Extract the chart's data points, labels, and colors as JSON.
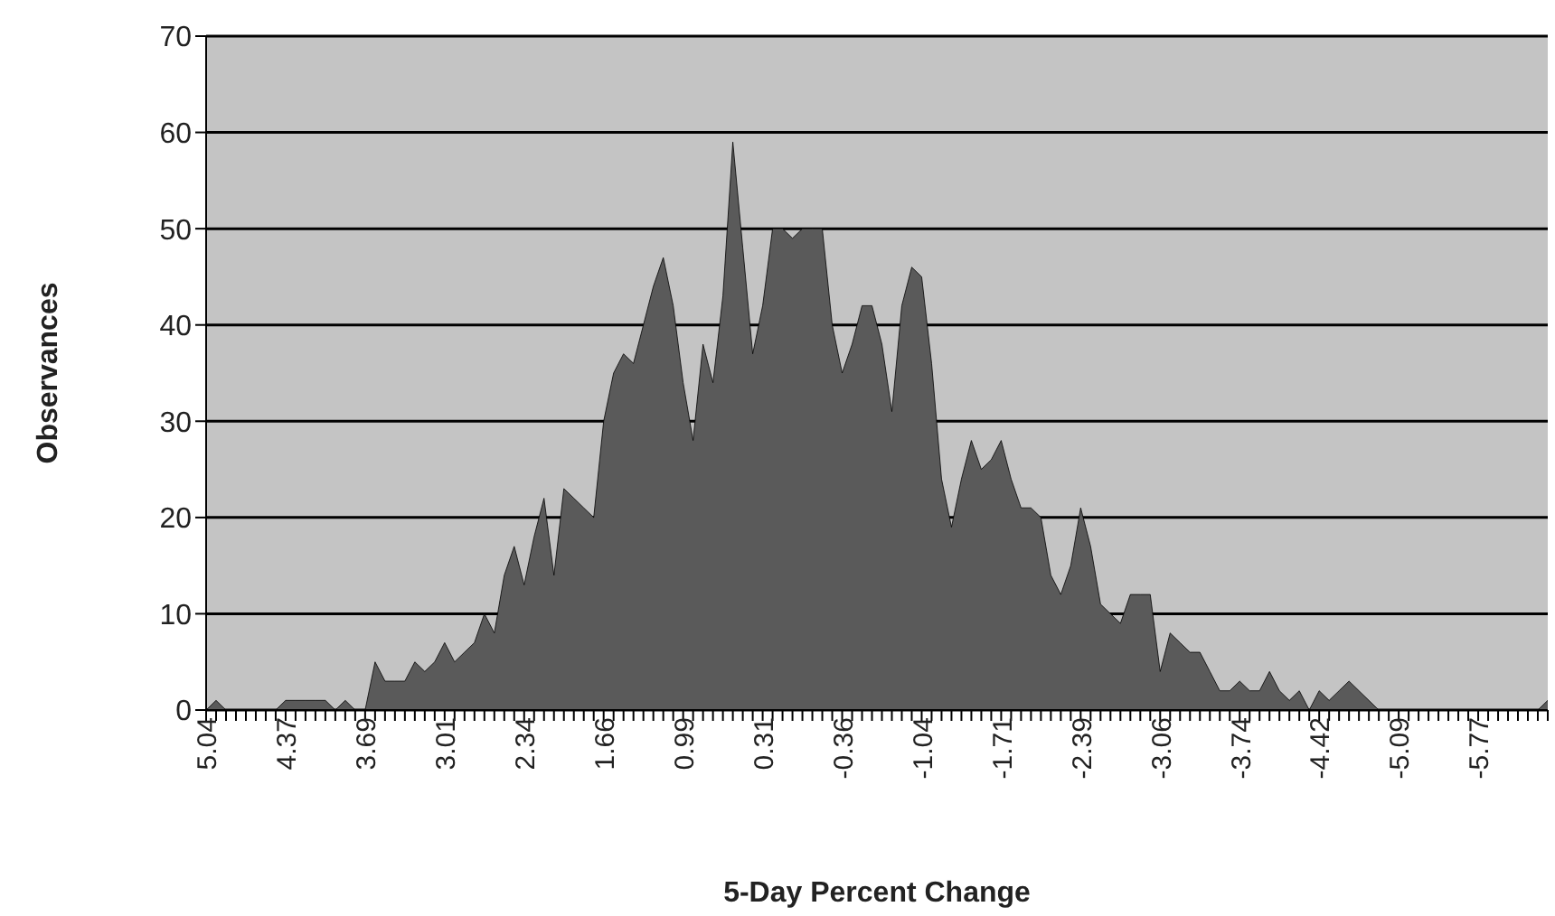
{
  "chart_data": {
    "type": "area",
    "xlabel": "5-Day Percent Change",
    "ylabel": "Observances",
    "categories": [
      "5.04",
      null,
      null,
      null,
      null,
      null,
      null,
      null,
      "4.37",
      null,
      null,
      null,
      null,
      null,
      null,
      null,
      "3.69",
      null,
      null,
      null,
      null,
      null,
      null,
      null,
      "3.01",
      null,
      null,
      null,
      null,
      null,
      null,
      null,
      "2.34",
      null,
      null,
      null,
      null,
      null,
      null,
      null,
      "1.66",
      null,
      null,
      null,
      null,
      null,
      null,
      null,
      "0.99",
      null,
      null,
      null,
      null,
      null,
      null,
      null,
      "0.31",
      null,
      null,
      null,
      null,
      null,
      null,
      null,
      "-0.36",
      null,
      null,
      null,
      null,
      null,
      null,
      null,
      "-1.04",
      null,
      null,
      null,
      null,
      null,
      null,
      null,
      "-1.71",
      null,
      null,
      null,
      null,
      null,
      null,
      null,
      "-2.39",
      null,
      null,
      null,
      null,
      null,
      null,
      null,
      "-3.06",
      null,
      null,
      null,
      null,
      null,
      null,
      null,
      "-3.74",
      null,
      null,
      null,
      null,
      null,
      null,
      null,
      "-4.42",
      null,
      null,
      null,
      null,
      null,
      null,
      null,
      "-5.09",
      null,
      null,
      null,
      null,
      null,
      null,
      null,
      "-5.77",
      null,
      null,
      null,
      null,
      null,
      null,
      null
    ],
    "values": [
      0,
      1,
      0,
      0,
      0,
      0,
      0,
      0,
      1,
      1,
      1,
      1,
      1,
      0,
      1,
      0,
      0,
      5,
      3,
      3,
      3,
      5,
      4,
      5,
      7,
      5,
      6,
      7,
      10,
      8,
      14,
      17,
      13,
      18,
      22,
      14,
      23,
      22,
      21,
      20,
      30,
      35,
      37,
      36,
      40,
      44,
      47,
      42,
      34,
      28,
      38,
      34,
      43,
      59,
      48,
      37,
      42,
      50,
      50,
      49,
      50,
      50,
      50,
      40,
      35,
      38,
      42,
      42,
      38,
      31,
      42,
      46,
      45,
      36,
      24,
      19,
      24,
      28,
      25,
      26,
      28,
      24,
      21,
      21,
      20,
      14,
      12,
      15,
      21,
      17,
      11,
      10,
      9,
      12,
      12,
      12,
      4,
      8,
      7,
      6,
      6,
      4,
      2,
      2,
      3,
      2,
      2,
      4,
      2,
      1,
      2,
      0,
      2,
      1,
      2,
      3,
      2,
      1,
      0,
      0,
      0,
      0,
      0,
      0,
      0,
      0,
      0,
      0,
      0,
      0,
      0,
      0,
      0,
      0,
      0,
      1
    ],
    "color": "#5a5a5a",
    "ylim": [
      0,
      70
    ],
    "yticks": [
      0,
      10,
      20,
      30,
      40,
      50,
      60,
      70
    ],
    "grid": "y"
  }
}
